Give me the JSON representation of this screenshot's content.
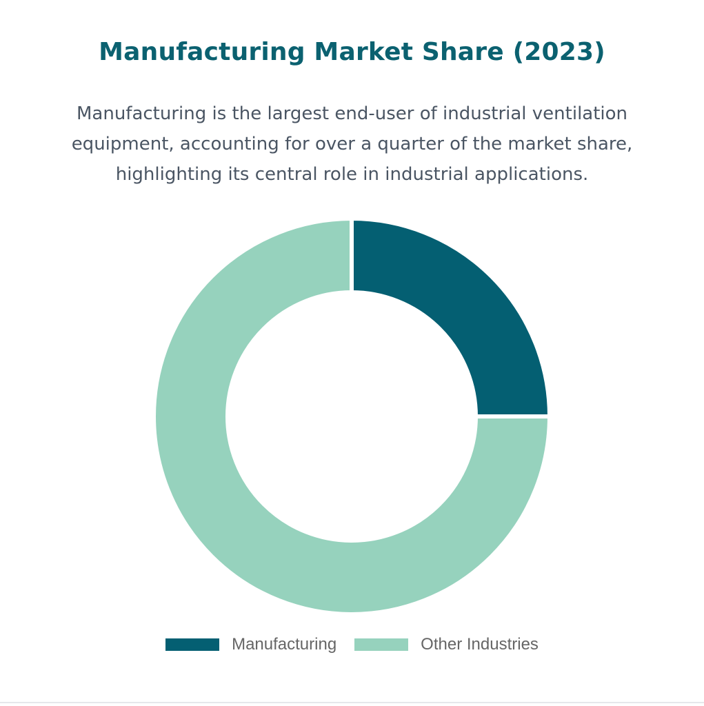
{
  "chart_data": {
    "type": "pie",
    "style": "doughnut",
    "title": "Manufacturing Market Share (2023)",
    "subtitle": "Manufacturing is the largest end-user of industrial ventilation equipment, accounting for over a quarter of the market share, highlighting its central role in industrial applications.",
    "categories": [
      "Manufacturing",
      "Other Industries"
    ],
    "values": [
      25,
      75
    ],
    "colors": [
      "#045f72",
      "#96d2bd"
    ],
    "legend": "bottom",
    "start_angle": "top",
    "direction": "clockwise"
  }
}
